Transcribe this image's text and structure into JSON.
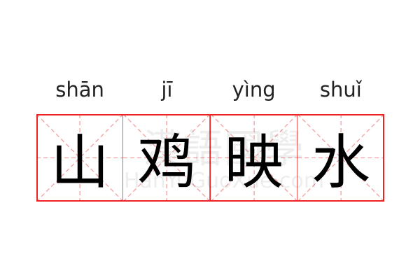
{
  "word": [
    {
      "pinyin": "shān",
      "char": "山"
    },
    {
      "pinyin": "jī",
      "char": "鸡"
    },
    {
      "pinyin": "yìng",
      "char": "映"
    },
    {
      "pinyin": "shuǐ",
      "char": "水"
    }
  ],
  "watermark": {
    "chinese": "漢語國學",
    "latin": "HanYuGuoXue.com"
  },
  "colors": {
    "border": "#ee2222",
    "guide": "#f4a0a0",
    "text": "#000000"
  }
}
